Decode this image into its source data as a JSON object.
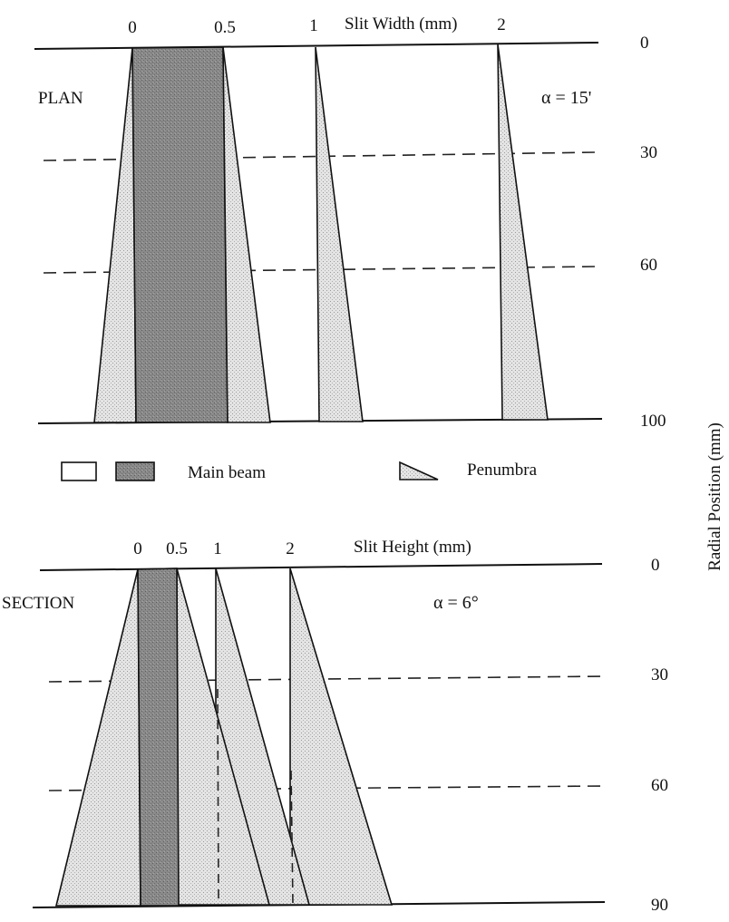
{
  "legend": {
    "main_beam": "Main beam",
    "penumbra": "Penumbra"
  },
  "axis": {
    "radial_label": "Radial Position (mm)"
  },
  "plan": {
    "label": "PLAN",
    "alpha": "α = 15'",
    "header": "Slit Width (mm)",
    "slit_ticks": [
      "0",
      "0.5",
      "1",
      "2"
    ],
    "radial_ticks": [
      "0",
      "30",
      "60",
      "100"
    ]
  },
  "section": {
    "label": "SECTION",
    "alpha": "α = 6°",
    "header": "Slit Height (mm)",
    "slit_ticks": [
      "0",
      "0.5",
      "1",
      "2"
    ],
    "radial_ticks": [
      "0",
      "30",
      "60",
      "90"
    ]
  }
}
